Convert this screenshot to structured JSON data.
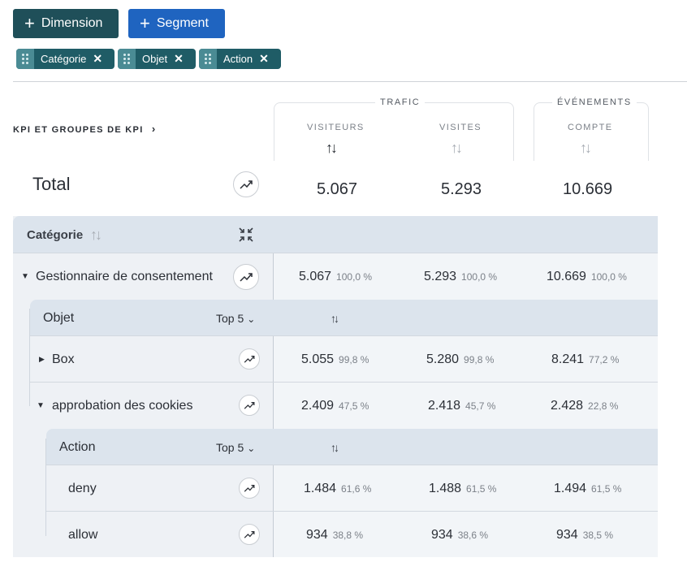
{
  "toolbar": {
    "dimension_label": "Dimension",
    "segment_label": "Segment"
  },
  "chips": [
    {
      "label": "Catégorie"
    },
    {
      "label": "Objet"
    },
    {
      "label": "Action"
    }
  ],
  "kpi_link": "KPI ET GROUPES DE KPI",
  "groups": {
    "traffic": "TRAFIC",
    "events": "ÉVÉNEMENTS"
  },
  "columns": {
    "visitors": "VISITEURS",
    "visits": "VISITES",
    "count": "COMPTE"
  },
  "total": {
    "label": "Total",
    "visitors": "5.067",
    "visits": "5.293",
    "count": "10.669"
  },
  "category": {
    "header": "Catégorie"
  },
  "rows": {
    "gestionnaire": {
      "label": "Gestionnaire de consentement",
      "visitors": "5.067",
      "visitors_pct": "100,0 %",
      "visits": "5.293",
      "visits_pct": "100,0 %",
      "count": "10.669",
      "count_pct": "100,0 %"
    },
    "objet_header": {
      "label": "Objet",
      "top": "Top 5"
    },
    "box": {
      "label": "Box",
      "visitors": "5.055",
      "visitors_pct": "99,8 %",
      "visits": "5.280",
      "visits_pct": "99,8 %",
      "count": "8.241",
      "count_pct": "77,2 %"
    },
    "cookies": {
      "label": "approbation des cookies",
      "visitors": "2.409",
      "visitors_pct": "47,5 %",
      "visits": "2.418",
      "visits_pct": "45,7 %",
      "count": "2.428",
      "count_pct": "22,8 %"
    },
    "action_header": {
      "label": "Action",
      "top": "Top 5"
    },
    "deny": {
      "label": "deny",
      "visitors": "1.484",
      "visitors_pct": "61,6 %",
      "visits": "1.488",
      "visits_pct": "61,5 %",
      "count": "1.494",
      "count_pct": "61,5 %"
    },
    "allow": {
      "label": "allow",
      "visitors": "934",
      "visitors_pct": "38,8 %",
      "visits": "934",
      "visits_pct": "38,6 %",
      "count": "934",
      "count_pct": "38,5 %"
    }
  },
  "colors": {
    "dimension_btn": "#1f4f59",
    "segment_btn": "#1f64c0",
    "chip": "#1f5c66"
  }
}
